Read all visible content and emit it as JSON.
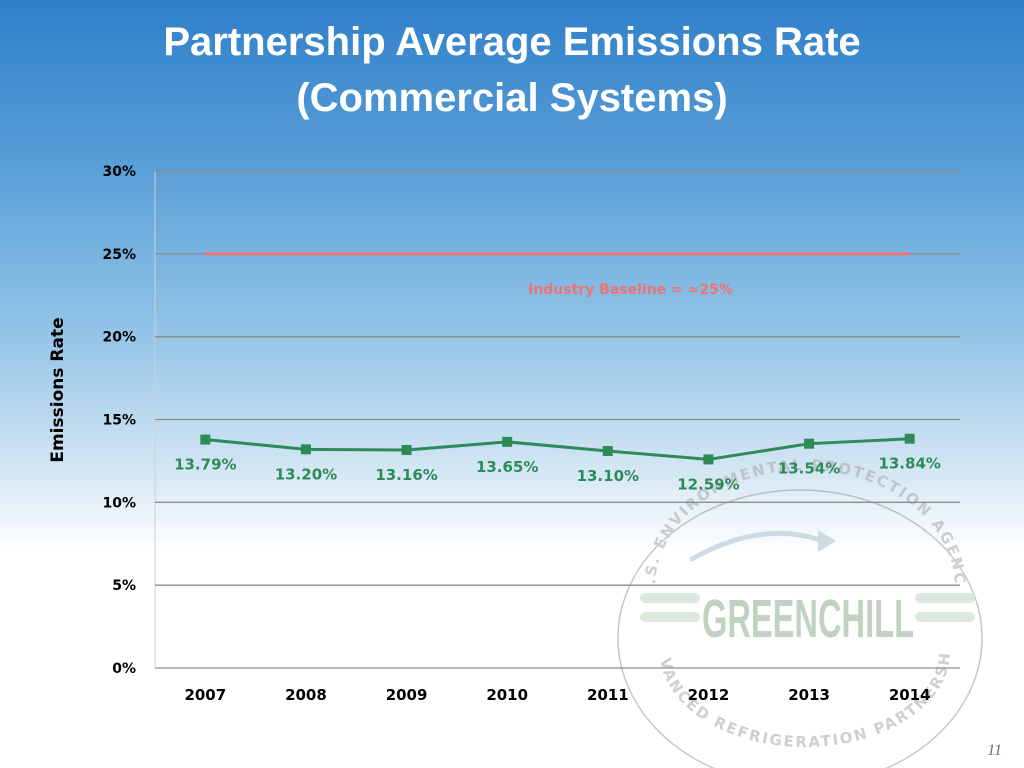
{
  "slide": {
    "title_line1": "Partnership Average Emissions Rate",
    "title_line2": "(Commercial Systems)",
    "page_number": "11"
  },
  "logo": {
    "name": "GREENCHILL",
    "arc_top": "U.S. ENVIRONMENTAL PROTECTION AGENCY",
    "arc_bottom": "ADVANCED REFRIGERATION PARTNERSHIP",
    "color": "#8fae8f"
  },
  "chart_data": {
    "type": "line",
    "title": "Partnership Average Emissions Rate (Commercial Systems)",
    "ylabel": "Emissions Rate",
    "xlabel": "",
    "categories": [
      "2007",
      "2008",
      "2009",
      "2010",
      "2011",
      "2012",
      "2013",
      "2014"
    ],
    "series": [
      {
        "values": [
          13.79,
          13.2,
          13.16,
          13.65,
          13.1,
          12.59,
          13.54,
          13.84
        ],
        "labels": [
          "13.79%",
          "13.20%",
          "13.16%",
          "13.65%",
          "13.10%",
          "12.59%",
          "13.54%",
          "13.84%"
        ],
        "color": "#2e8b57",
        "marker": "square"
      }
    ],
    "baseline": {
      "value": 25,
      "label": "Industry Baseline = ≈25%",
      "color": "#f07272"
    },
    "ylim": [
      0,
      30
    ],
    "yticks": [
      0,
      5,
      10,
      15,
      20,
      25,
      30
    ],
    "ytick_labels": [
      "0%",
      "5%",
      "10%",
      "15%",
      "20%",
      "25%",
      "30%"
    ],
    "grid": true,
    "legend": "none"
  }
}
